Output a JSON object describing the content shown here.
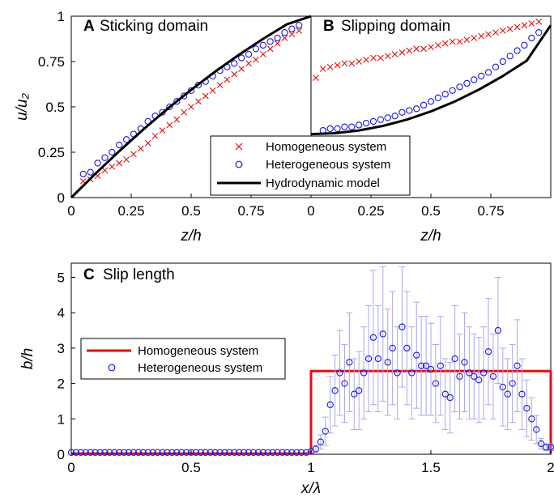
{
  "chart_data": [
    {
      "type": "scatter",
      "panel_letter": "A",
      "title": "Sticking domain",
      "xlabel": "z/h",
      "ylabel": "u/u₂",
      "xlim": [
        0,
        1
      ],
      "ylim": [
        0,
        1
      ],
      "xticks": [
        "0",
        "0.25",
        "0.5",
        "0.75"
      ],
      "yticks": [
        "0",
        "0.25",
        "0.5",
        "0.75",
        "1"
      ],
      "series": [
        {
          "name": "Homogeneous system",
          "marker": "x",
          "color": "#e01010",
          "x": [
            0.05,
            0.08,
            0.11,
            0.14,
            0.17,
            0.2,
            0.23,
            0.26,
            0.29,
            0.32,
            0.35,
            0.38,
            0.41,
            0.44,
            0.47,
            0.5,
            0.53,
            0.56,
            0.59,
            0.62,
            0.65,
            0.68,
            0.71,
            0.74,
            0.77,
            0.8,
            0.83,
            0.86,
            0.89,
            0.92,
            0.95
          ],
          "y": [
            0.09,
            0.1,
            0.12,
            0.15,
            0.17,
            0.19,
            0.21,
            0.24,
            0.27,
            0.3,
            0.34,
            0.37,
            0.4,
            0.43,
            0.47,
            0.5,
            0.53,
            0.56,
            0.59,
            0.62,
            0.65,
            0.68,
            0.71,
            0.74,
            0.76,
            0.79,
            0.82,
            0.85,
            0.88,
            0.9,
            0.92
          ]
        },
        {
          "name": "Heterogeneous system",
          "marker": "o",
          "color": "#1818e0",
          "x": [
            0.05,
            0.08,
            0.11,
            0.14,
            0.17,
            0.2,
            0.23,
            0.26,
            0.29,
            0.32,
            0.35,
            0.38,
            0.41,
            0.44,
            0.47,
            0.5,
            0.53,
            0.56,
            0.59,
            0.62,
            0.65,
            0.68,
            0.71,
            0.74,
            0.77,
            0.8,
            0.83,
            0.86,
            0.89,
            0.92,
            0.95
          ],
          "y": [
            0.13,
            0.14,
            0.19,
            0.22,
            0.25,
            0.29,
            0.32,
            0.35,
            0.38,
            0.42,
            0.45,
            0.47,
            0.5,
            0.53,
            0.56,
            0.59,
            0.62,
            0.64,
            0.67,
            0.7,
            0.72,
            0.74,
            0.77,
            0.79,
            0.82,
            0.84,
            0.86,
            0.88,
            0.91,
            0.93,
            0.95
          ]
        },
        {
          "name": "Hydrodynamic model",
          "marker": "line",
          "color": "#000000",
          "x": [
            0,
            0.1,
            0.2,
            0.3,
            0.4,
            0.5,
            0.6,
            0.7,
            0.8,
            0.9,
            1.0
          ],
          "y": [
            0,
            0.131,
            0.256,
            0.375,
            0.488,
            0.594,
            0.694,
            0.788,
            0.875,
            0.956,
            1.0
          ]
        }
      ]
    },
    {
      "type": "scatter",
      "panel_letter": "B",
      "title": "Slipping domain",
      "xlabel": "z/h",
      "xlim": [
        0,
        1
      ],
      "ylim": [
        0,
        1
      ],
      "xticks": [
        "0",
        "0.25",
        "0.5",
        "0.75"
      ],
      "series": [
        {
          "name": "Homogeneous system",
          "marker": "x",
          "color": "#e01010",
          "x": [
            0.02,
            0.05,
            0.08,
            0.11,
            0.14,
            0.17,
            0.2,
            0.23,
            0.26,
            0.29,
            0.32,
            0.35,
            0.38,
            0.41,
            0.44,
            0.47,
            0.5,
            0.53,
            0.56,
            0.59,
            0.62,
            0.65,
            0.68,
            0.71,
            0.74,
            0.77,
            0.8,
            0.83,
            0.86,
            0.89,
            0.92,
            0.95
          ],
          "y": [
            0.66,
            0.71,
            0.72,
            0.73,
            0.74,
            0.74,
            0.75,
            0.76,
            0.77,
            0.77,
            0.78,
            0.79,
            0.8,
            0.81,
            0.82,
            0.82,
            0.83,
            0.84,
            0.85,
            0.86,
            0.86,
            0.87,
            0.88,
            0.89,
            0.9,
            0.91,
            0.92,
            0.93,
            0.94,
            0.95,
            0.96,
            0.97
          ]
        },
        {
          "name": "Heterogeneous system",
          "marker": "o",
          "color": "#1818e0",
          "x": [
            0.05,
            0.08,
            0.11,
            0.14,
            0.17,
            0.2,
            0.23,
            0.26,
            0.29,
            0.32,
            0.35,
            0.38,
            0.41,
            0.44,
            0.47,
            0.5,
            0.53,
            0.56,
            0.59,
            0.62,
            0.65,
            0.68,
            0.71,
            0.74,
            0.77,
            0.8,
            0.83,
            0.86,
            0.89,
            0.92,
            0.95
          ],
          "y": [
            0.37,
            0.38,
            0.38,
            0.39,
            0.39,
            0.4,
            0.41,
            0.42,
            0.43,
            0.44,
            0.45,
            0.47,
            0.48,
            0.49,
            0.51,
            0.53,
            0.55,
            0.57,
            0.59,
            0.61,
            0.63,
            0.65,
            0.67,
            0.69,
            0.72,
            0.75,
            0.78,
            0.81,
            0.84,
            0.88,
            0.91
          ]
        },
        {
          "name": "Hydrodynamic model",
          "marker": "line",
          "color": "#000000",
          "x": [
            0,
            0.1,
            0.2,
            0.3,
            0.4,
            0.5,
            0.6,
            0.7,
            0.8,
            0.9,
            1.0
          ],
          "y": [
            0.35,
            0.355,
            0.37,
            0.395,
            0.43,
            0.475,
            0.53,
            0.595,
            0.67,
            0.755,
            0.95
          ]
        }
      ]
    },
    {
      "type": "scatter",
      "panel_letter": "C",
      "title": "Slip length",
      "xlabel": "x/λ",
      "ylabel": "b/h",
      "xlim": [
        0,
        2
      ],
      "ylim": [
        0,
        5.4
      ],
      "xticks": [
        "0",
        "0.5",
        "1",
        "1.5",
        "2"
      ],
      "yticks": [
        "0",
        "1",
        "2",
        "3",
        "4",
        "5"
      ],
      "legend": "left",
      "series": [
        {
          "name": "Homogeneous system",
          "marker": "line",
          "color": "#e01010",
          "x": [
            0,
            1.0,
            1.0,
            2.0,
            2.0
          ],
          "y": [
            0.02,
            0.02,
            2.35,
            2.35,
            0.02
          ]
        },
        {
          "name": "Heterogeneous system",
          "marker": "o",
          "color": "#1818e0",
          "errorbar_color": "#a8a8ee",
          "x": [
            0.0,
            0.02,
            0.04,
            0.06,
            0.08,
            0.1,
            0.12,
            0.14,
            0.16,
            0.18,
            0.2,
            0.22,
            0.24,
            0.26,
            0.28,
            0.3,
            0.32,
            0.34,
            0.36,
            0.38,
            0.4,
            0.42,
            0.44,
            0.46,
            0.48,
            0.5,
            0.52,
            0.54,
            0.56,
            0.58,
            0.6,
            0.62,
            0.64,
            0.66,
            0.68,
            0.7,
            0.72,
            0.74,
            0.76,
            0.78,
            0.8,
            0.82,
            0.84,
            0.86,
            0.88,
            0.9,
            0.92,
            0.94,
            0.96,
            0.98,
            1.0,
            1.02,
            1.04,
            1.06,
            1.08,
            1.1,
            1.12,
            1.14,
            1.16,
            1.18,
            1.2,
            1.22,
            1.24,
            1.26,
            1.28,
            1.3,
            1.32,
            1.34,
            1.36,
            1.38,
            1.4,
            1.42,
            1.44,
            1.46,
            1.48,
            1.5,
            1.52,
            1.54,
            1.56,
            1.58,
            1.6,
            1.62,
            1.64,
            1.66,
            1.68,
            1.7,
            1.72,
            1.74,
            1.76,
            1.78,
            1.8,
            1.82,
            1.84,
            1.86,
            1.88,
            1.9,
            1.92,
            1.94,
            1.96,
            1.98,
            2.0
          ],
          "y": [
            0.05,
            0.05,
            0.05,
            0.05,
            0.05,
            0.05,
            0.05,
            0.05,
            0.05,
            0.05,
            0.05,
            0.05,
            0.05,
            0.05,
            0.05,
            0.05,
            0.05,
            0.05,
            0.05,
            0.05,
            0.05,
            0.05,
            0.05,
            0.05,
            0.05,
            0.05,
            0.05,
            0.05,
            0.05,
            0.05,
            0.05,
            0.05,
            0.05,
            0.05,
            0.05,
            0.05,
            0.05,
            0.05,
            0.05,
            0.05,
            0.05,
            0.05,
            0.05,
            0.05,
            0.05,
            0.05,
            0.05,
            0.05,
            0.05,
            0.05,
            0.08,
            0.15,
            0.35,
            0.65,
            1.4,
            1.8,
            2.3,
            2.0,
            2.6,
            1.7,
            1.8,
            2.3,
            2.7,
            3.3,
            2.7,
            3.4,
            2.6,
            3.0,
            2.3,
            3.6,
            3.0,
            2.3,
            2.8,
            2.5,
            2.5,
            2.4,
            2.0,
            2.5,
            1.7,
            1.6,
            2.7,
            2.2,
            2.6,
            2.3,
            2.2,
            2.1,
            2.3,
            2.9,
            2.2,
            3.5,
            1.9,
            1.7,
            2.0,
            2.5,
            1.7,
            1.3,
            1.0,
            0.7,
            0.3,
            0.2,
            0.2
          ],
          "err": [
            0,
            0,
            0,
            0,
            0,
            0,
            0,
            0,
            0,
            0,
            0,
            0,
            0,
            0,
            0,
            0,
            0,
            0,
            0,
            0,
            0,
            0,
            0,
            0,
            0,
            0,
            0,
            0,
            0,
            0,
            0,
            0,
            0,
            0,
            0,
            0,
            0,
            0,
            0,
            0,
            0,
            0,
            0,
            0,
            0,
            0,
            0,
            0,
            0,
            0,
            0.05,
            0.1,
            0.2,
            0.4,
            0.8,
            1.0,
            1.2,
            1.1,
            1.4,
            1.0,
            1.1,
            1.3,
            1.5,
            1.9,
            1.5,
            1.9,
            1.5,
            1.6,
            1.3,
            1.7,
            1.6,
            1.3,
            1.5,
            1.4,
            1.4,
            1.3,
            1.1,
            1.4,
            1.0,
            1.0,
            1.5,
            1.2,
            1.4,
            1.3,
            1.2,
            1.2,
            1.3,
            1.5,
            1.2,
            1.5,
            1.1,
            1.0,
            1.1,
            1.3,
            1.0,
            0.8,
            0.6,
            0.4,
            0.15,
            0.1,
            0.1
          ]
        }
      ]
    }
  ]
}
